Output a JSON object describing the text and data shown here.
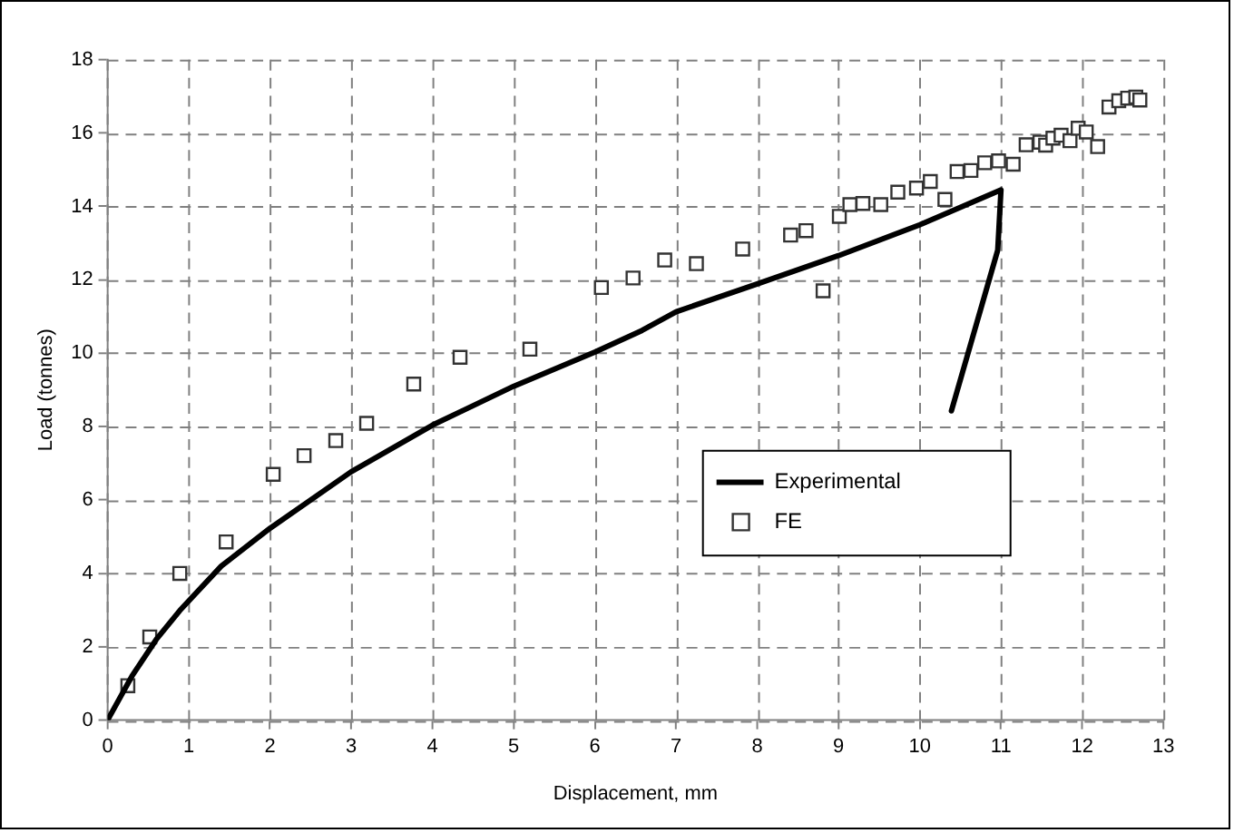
{
  "chart_data": {
    "type": "scatter",
    "xlabel": "Displacement, mm",
    "ylabel": "Load (tonnes)",
    "xlim": [
      0,
      13
    ],
    "xticks": [
      0,
      1,
      2,
      3,
      4,
      5,
      6,
      7,
      8,
      9,
      10,
      11,
      12,
      13
    ],
    "ylim": [
      0,
      18
    ],
    "yticks": [
      0,
      2,
      4,
      6,
      8,
      10,
      12,
      14,
      16,
      18
    ],
    "grid": true,
    "legend": "right",
    "series": [
      {
        "name": "Experimental",
        "type": "line",
        "color": "#000000",
        "marker": "none",
        "line_style": "solid",
        "x": [
          0,
          0.3,
          0.6,
          0.89,
          1.4,
          2,
          3,
          4,
          5,
          6,
          6.58,
          7,
          8,
          9,
          10,
          11,
          10.96,
          10.39
        ],
        "values": [
          0,
          1.2,
          2.2,
          2.99,
          4.2,
          5.23,
          6.77,
          8.04,
          9.1,
          10.03,
          10.62,
          11.13,
          11.89,
          12.66,
          13.5,
          14.45,
          12.81,
          8.43
        ]
      },
      {
        "name": "FE",
        "type": "scatter",
        "color": "#333333",
        "marker": "square",
        "x": [
          0.25,
          0.52,
          0.89,
          1.46,
          2.04,
          2.42,
          2.81,
          3.19,
          3.77,
          4.34,
          5.2,
          6.08,
          6.47,
          6.86,
          7.25,
          7.82,
          8.41,
          8.6,
          8.81,
          9.01,
          9.14,
          9.3,
          9.52,
          9.73,
          9.96,
          10.13,
          10.31,
          10.46,
          10.63,
          10.8,
          10.97,
          11.15,
          11.31,
          11.48,
          11.55,
          11.64,
          11.74,
          11.85,
          11.95,
          12.05,
          12.19,
          12.33,
          12.45,
          12.56,
          12.66,
          12.71
        ],
        "values": [
          0.94,
          2.27,
          4.0,
          4.86,
          6.7,
          7.21,
          7.62,
          8.09,
          9.16,
          9.89,
          10.11,
          11.79,
          12.05,
          12.54,
          12.44,
          12.84,
          13.22,
          13.34,
          11.7,
          13.73,
          14.05,
          14.08,
          14.05,
          14.39,
          14.5,
          14.68,
          14.19,
          14.95,
          14.98,
          15.19,
          15.24,
          15.15,
          15.68,
          15.75,
          15.67,
          15.86,
          15.94,
          15.79,
          16.13,
          16.03,
          15.63,
          16.71,
          16.88,
          16.95,
          16.98,
          16.9
        ]
      }
    ]
  }
}
